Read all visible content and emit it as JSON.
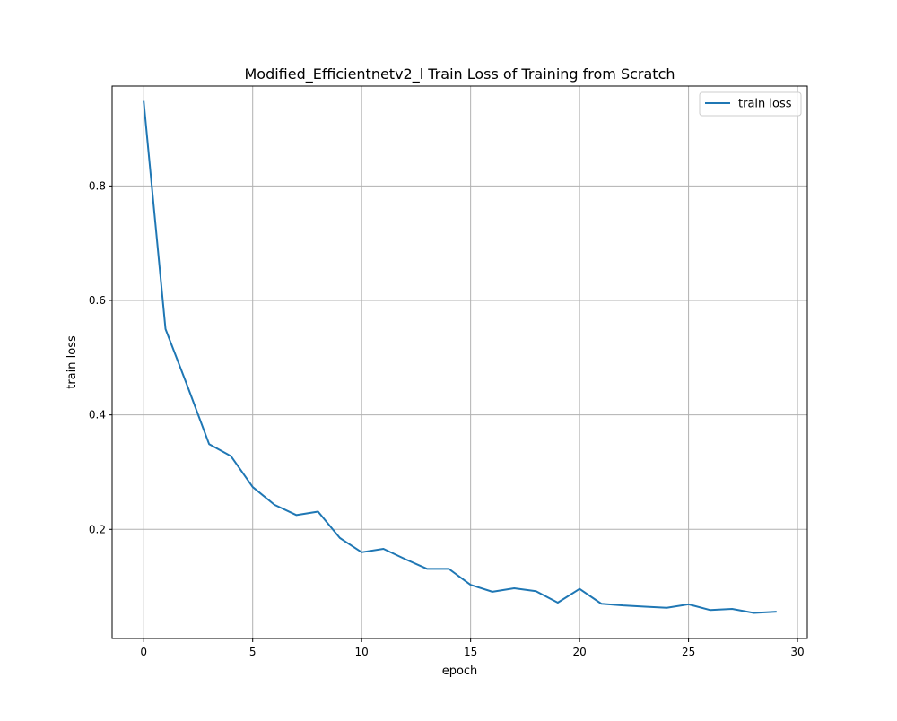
{
  "chart_data": {
    "type": "line",
    "title": "Modified_Efficientnetv2_l Train Loss of Training from Scratch",
    "xlabel": "epoch",
    "ylabel": "train loss",
    "xlim": [
      -1.45,
      30.45
    ],
    "ylim": [
      0.0093,
      0.9745
    ],
    "x_ticks": [
      0,
      5,
      10,
      15,
      20,
      25,
      30
    ],
    "y_ticks": [
      0.2,
      0.4,
      0.6,
      0.8
    ],
    "x_tick_labels": [
      "0",
      "5",
      "10",
      "15",
      "20",
      "25",
      "30"
    ],
    "y_tick_labels": [
      "0.2",
      "0.4",
      "0.6",
      "0.8"
    ],
    "grid": true,
    "legend": {
      "position": "top-right"
    },
    "x": [
      0,
      1,
      2,
      3,
      4,
      5,
      6,
      7,
      8,
      9,
      10,
      11,
      12,
      13,
      14,
      15,
      16,
      17,
      18,
      19,
      20,
      21,
      22,
      23,
      24,
      25,
      26,
      27,
      28,
      29
    ],
    "series": [
      {
        "name": "train loss",
        "color": "#1f77b4",
        "values": [
          0.947,
          0.55,
          0.451,
          0.349,
          0.328,
          0.274,
          0.243,
          0.225,
          0.231,
          0.185,
          0.16,
          0.166,
          0.148,
          0.131,
          0.131,
          0.103,
          0.091,
          0.097,
          0.092,
          0.072,
          0.096,
          0.07,
          0.067,
          0.065,
          0.063,
          0.069,
          0.059,
          0.061,
          0.054,
          0.056
        ]
      }
    ]
  }
}
